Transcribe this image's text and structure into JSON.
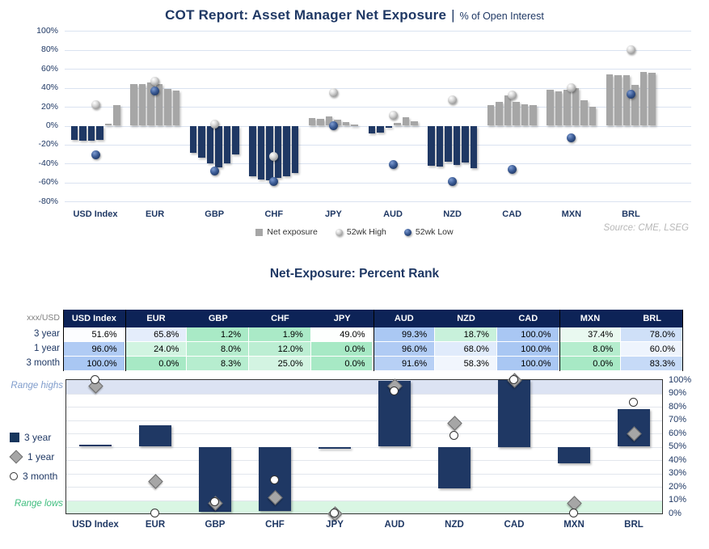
{
  "colors": {
    "navy": "#1f3864",
    "bar_gray": "#a6a6a6",
    "grid_top": "#dae3f0",
    "grid_bottom": "#e2e6ed",
    "table_header_bg": "#0d2357",
    "scale_green": "#a7e9c5",
    "scale_blue": "#a9c7f3",
    "band_high_bg": "#dce3f3",
    "band_low_bg": "#d9f6e3",
    "range_highs_text": "#7f9ccb",
    "range_lows_text": "#3dbd7d",
    "plot_border": "#333333",
    "cell_text": "#000000",
    "corner_text": "#7f7f7f"
  },
  "top_chart": {
    "title": "COT Report: Asset Manager Net Exposure",
    "separator": "|",
    "subtitle": "% of Open Interest",
    "legend": [
      {
        "label": "Net exposure",
        "swatch": "gray-square"
      },
      {
        "label": "52wk High",
        "swatch": "gray-sphere"
      },
      {
        "label": "52wk Low",
        "swatch": "navy-sphere"
      }
    ],
    "source": "Source: CME, LSEG",
    "y_ticks": [
      "100%",
      "80%",
      "60%",
      "40%",
      "20%",
      "0%",
      "-20%",
      "-40%",
      "-60%",
      "-80%"
    ]
  },
  "percent_rank": {
    "title": "Net-Exposure: Percent Rank",
    "corner_label": "xxx/USD",
    "row_labels": [
      "3 year",
      "1 year",
      "3 month"
    ],
    "legend": [
      "3 year",
      "1 year",
      "3 month"
    ],
    "band_labels": {
      "high": "Range highs",
      "low": "Range lows"
    },
    "right_axis_ticks": [
      "100%",
      "90%",
      "80%",
      "70%",
      "60%",
      "50%",
      "40%",
      "30%",
      "20%",
      "10%",
      "0%"
    ]
  },
  "chart_data": [
    {
      "id": "net_exposure_by_currency",
      "type": "bar",
      "title": "COT Report: Asset Manager Net Exposure | % of Open Interest",
      "categories": [
        "USD Index",
        "EUR",
        "GBP",
        "CHF",
        "JPY",
        "AUD",
        "NZD",
        "CAD",
        "MXN",
        "BRL"
      ],
      "series": [
        {
          "name": "Net exposure",
          "note": "six most recent weekly values per currency, % of open interest",
          "values": [
            [
              -15,
              -16,
              -16,
              -15,
              2,
              22
            ],
            [
              44,
              44,
              46,
              44,
              39,
              37
            ],
            [
              -29,
              -34,
              -40,
              -44,
              -40,
              -30
            ],
            [
              -53,
              -57,
              -58,
              -55,
              -53,
              -50
            ],
            [
              8,
              7,
              10,
              6,
              4,
              1
            ],
            [
              -8,
              -7,
              -2,
              3,
              9,
              5
            ],
            [
              -42,
              -43,
              -38,
              -41,
              -39,
              -45
            ],
            [
              22,
              25,
              32,
              25,
              23,
              22
            ],
            [
              38,
              36,
              38,
              40,
              27,
              20
            ],
            [
              54,
              53,
              53,
              43,
              57,
              56
            ]
          ]
        },
        {
          "name": "52wk High",
          "values": [
            22,
            47,
            2,
            -32,
            35,
            11,
            27,
            32,
            40,
            80
          ]
        },
        {
          "name": "52wk Low",
          "values": [
            -31,
            37,
            -48,
            -59,
            0,
            -41,
            -59,
            -46,
            -13,
            33
          ]
        }
      ],
      "ylim": [
        -80,
        100
      ],
      "ytick_step": 20,
      "grid": true,
      "legend_position": "bottom"
    },
    {
      "id": "percent_rank_table",
      "type": "table",
      "title": "Net-Exposure: Percent Rank",
      "corner_label": "xxx/USD",
      "columns": [
        "USD Index",
        "EUR",
        "GBP",
        "CHF",
        "JPY",
        "AUD",
        "NZD",
        "CAD",
        "MXN",
        "BRL"
      ],
      "rows": [
        {
          "label": "3 year",
          "values": [
            51.6,
            65.8,
            1.2,
            1.9,
            49.0,
            99.3,
            18.7,
            100.0,
            37.4,
            78.0
          ]
        },
        {
          "label": "1 year",
          "values": [
            96.0,
            24.0,
            8.0,
            12.0,
            0.0,
            96.0,
            68.0,
            100.0,
            8.0,
            60.0
          ]
        },
        {
          "label": "3 month",
          "values": [
            100.0,
            0.0,
            8.3,
            25.0,
            0.0,
            91.6,
            58.3,
            100.0,
            0.0,
            83.3
          ]
        }
      ],
      "value_format": "percent_1dp",
      "color_scale": {
        "min": 0,
        "mid": 50,
        "max": 100,
        "min_color": "green",
        "mid_color": "white",
        "max_color": "blue"
      },
      "group_separators_after": [
        "USD Index",
        "JPY",
        "CAD",
        "BRL"
      ]
    },
    {
      "id": "percent_rank_chart",
      "type": "bar",
      "categories": [
        "USD Index",
        "EUR",
        "GBP",
        "CHF",
        "JPY",
        "AUD",
        "NZD",
        "CAD",
        "MXN",
        "BRL"
      ],
      "series": [
        {
          "name": "3 year",
          "marker": "bar",
          "bar_base": 50,
          "values": [
            51.6,
            65.8,
            1.2,
            1.9,
            49.0,
            99.3,
            18.7,
            100.0,
            37.4,
            78.0
          ]
        },
        {
          "name": "1 year",
          "marker": "diamond",
          "values": [
            96.0,
            24.0,
            8.0,
            12.0,
            0.0,
            96.0,
            68.0,
            100.0,
            8.0,
            60.0
          ]
        },
        {
          "name": "3 month",
          "marker": "circle",
          "values": [
            100.0,
            0.0,
            8.3,
            25.0,
            0.0,
            91.6,
            58.3,
            100.0,
            0.0,
            83.3
          ]
        }
      ],
      "ylim": [
        0,
        100
      ],
      "ytick_step": 10,
      "grid": true,
      "bands": [
        {
          "label": "Range highs",
          "from": 90,
          "to": 100
        },
        {
          "label": "Range lows",
          "from": 0,
          "to": 10
        }
      ],
      "legend_position": "left"
    }
  ]
}
